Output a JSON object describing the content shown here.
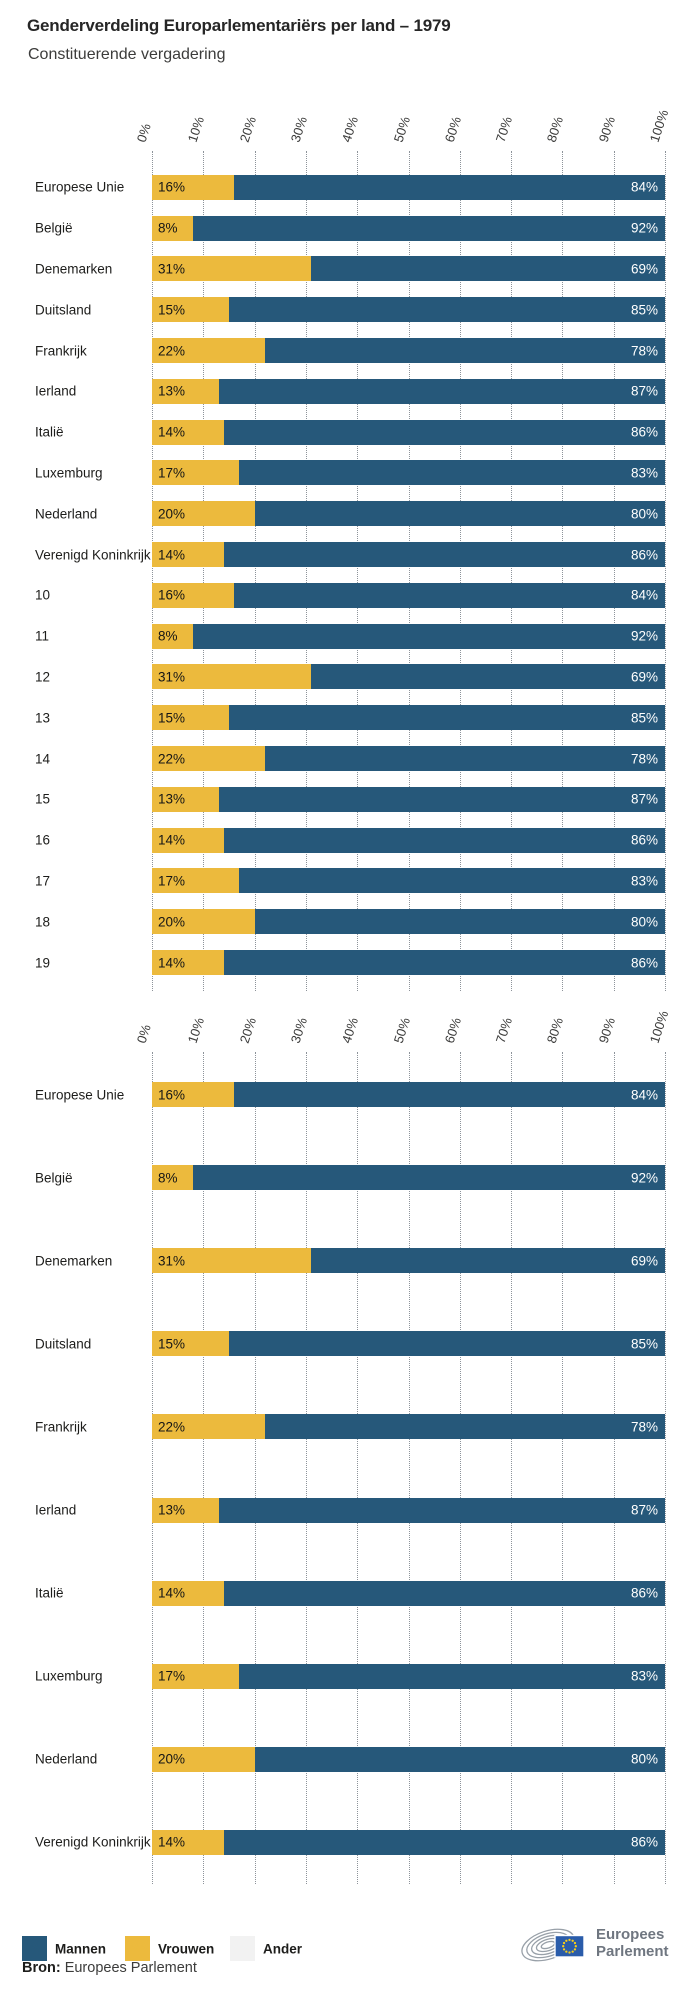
{
  "header": {
    "title": "Genderverdeling Europarlementariërs per land – 1979",
    "subtitle": "Constituerende vergadering"
  },
  "axis": {
    "tick_labels": [
      "0%",
      "10%",
      "20%",
      "30%",
      "40%",
      "50%",
      "60%",
      "70%",
      "80%",
      "90%",
      "100%"
    ]
  },
  "chart_data": [
    {
      "type": "bar",
      "stacked": true,
      "orientation": "horizontal",
      "title": "",
      "xlim": [
        0,
        100
      ],
      "grid": "dotted-vertical",
      "x_ticks": [
        "0%",
        "10%",
        "20%",
        "30%",
        "40%",
        "50%",
        "60%",
        "70%",
        "80%",
        "90%",
        "100%"
      ],
      "categories": [
        "Europese Unie",
        "België",
        "Denemarken",
        "Duitsland",
        "Frankrijk",
        "Ierland",
        "Italië",
        "Luxemburg",
        "Nederland",
        "Verenigd Koninkrijk",
        "10",
        "11",
        "12",
        "13",
        "14",
        "15",
        "16",
        "17",
        "18",
        "19"
      ],
      "series": [
        {
          "name": "Vrouwen",
          "color": "#ecba3d",
          "label_position": "inside-left",
          "values": [
            16,
            8,
            31,
            15,
            22,
            13,
            14,
            17,
            20,
            14,
            16,
            8,
            31,
            15,
            22,
            13,
            14,
            17,
            20,
            14
          ]
        },
        {
          "name": "Mannen",
          "color": "#26587a",
          "label_position": "inside-right",
          "values": [
            84,
            92,
            69,
            85,
            78,
            87,
            86,
            83,
            80,
            86,
            84,
            92,
            69,
            85,
            78,
            87,
            86,
            83,
            80,
            86
          ]
        }
      ],
      "value_label_format": "{v}%"
    },
    {
      "type": "bar",
      "stacked": true,
      "orientation": "horizontal",
      "title": "",
      "xlim": [
        0,
        100
      ],
      "grid": "dotted-vertical",
      "x_ticks": [
        "0%",
        "10%",
        "20%",
        "30%",
        "40%",
        "50%",
        "60%",
        "70%",
        "80%",
        "90%",
        "100%"
      ],
      "categories": [
        "Europese Unie",
        "België",
        "Denemarken",
        "Duitsland",
        "Frankrijk",
        "Ierland",
        "Italië",
        "Luxemburg",
        "Nederland",
        "Verenigd Koninkrijk"
      ],
      "series": [
        {
          "name": "Vrouwen",
          "color": "#ecba3d",
          "label_position": "inside-left",
          "values": [
            16,
            8,
            31,
            15,
            22,
            13,
            14,
            17,
            20,
            14
          ]
        },
        {
          "name": "Mannen",
          "color": "#26587a",
          "label_position": "inside-right",
          "values": [
            84,
            92,
            69,
            85,
            78,
            87,
            86,
            83,
            80,
            86
          ]
        }
      ],
      "value_label_format": "{v}%"
    }
  ],
  "legend": {
    "items": [
      {
        "label": "Mannen",
        "color": "#26587a"
      },
      {
        "label": "Vrouwen",
        "color": "#ecba3d"
      },
      {
        "label": "Ander",
        "color": "#f2f2f2"
      }
    ]
  },
  "source": {
    "label": "Bron:",
    "text": " Europees Parlement"
  },
  "logo": {
    "line1": "Europees",
    "line2": "Parlement"
  }
}
